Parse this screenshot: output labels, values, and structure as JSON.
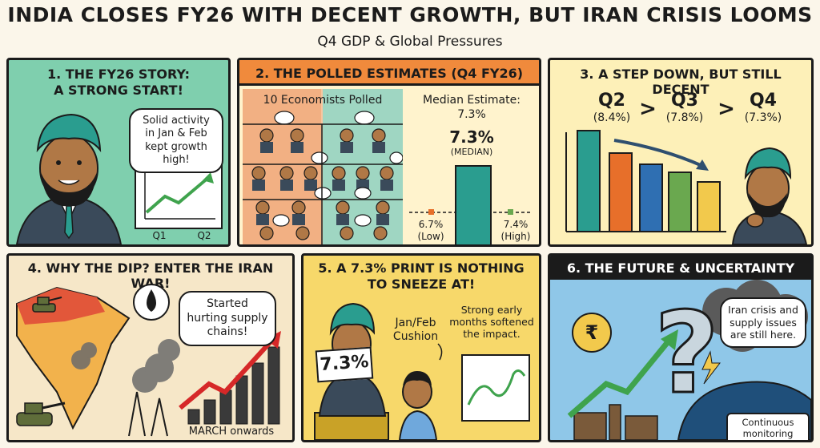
{
  "header": {
    "title": "INDIA CLOSES FY26 WITH DECENT GROWTH, BUT IRAN CRISIS LOOMS",
    "subtitle": "Q4 GDP & Global Pressures"
  },
  "panel1": {
    "title_line1": "1. THE FY26 STORY:",
    "title_line2": "A STRONG START!",
    "bubble": "Solid activity in Jan & Feb kept growth high!",
    "chart_x1": "Q1",
    "chart_x2": "Q2"
  },
  "panel2": {
    "title": "2. THE POLLED ESTIMATES (Q4 FY26)",
    "left_label": "10 Economists Polled",
    "median_heading": "Median Estimate:",
    "median_heading_value": "7.3%",
    "median_big": "7.3%",
    "median_tag": "(MEDIAN)",
    "low_value": "6.7%",
    "low_tag": "(Low)",
    "high_value": "7.4%",
    "high_tag": "(High)"
  },
  "panel3": {
    "title": "3. A STEP DOWN, BUT STILL DECENT",
    "q2": "Q2",
    "q2_val": "(8.4%)",
    "q3": "Q3",
    "q3_val": "(7.8%)",
    "q4": "Q4",
    "q4_val": "(7.3%)",
    "gt1": ">",
    "gt2": ">"
  },
  "panel4": {
    "title": "4. WHY THE DIP? ENTER THE IRAN WAR!",
    "bubble": "Started hurting supply chains!",
    "arrow_label": "MARCH onwards"
  },
  "panel5": {
    "title_line1": "5. A 7.3% PRINT IS NOTHING",
    "title_line2": "TO SNEEZE AT!",
    "sign": "7.3%",
    "cushion": "Jan/Feb Cushion",
    "note": "Strong early months softened the impact."
  },
  "panel6": {
    "title": "6. THE FUTURE & UNCERTAINTY",
    "bubble": "Iran crisis and supply issues are still here.",
    "caption": "Continuous monitoring required.",
    "rupee": "₹"
  },
  "colors": {
    "teal": "#2a9d8f",
    "orange": "#e76f2a",
    "yellow": "#f2c94c",
    "green": "#6aa84f",
    "red": "#d62828"
  }
}
